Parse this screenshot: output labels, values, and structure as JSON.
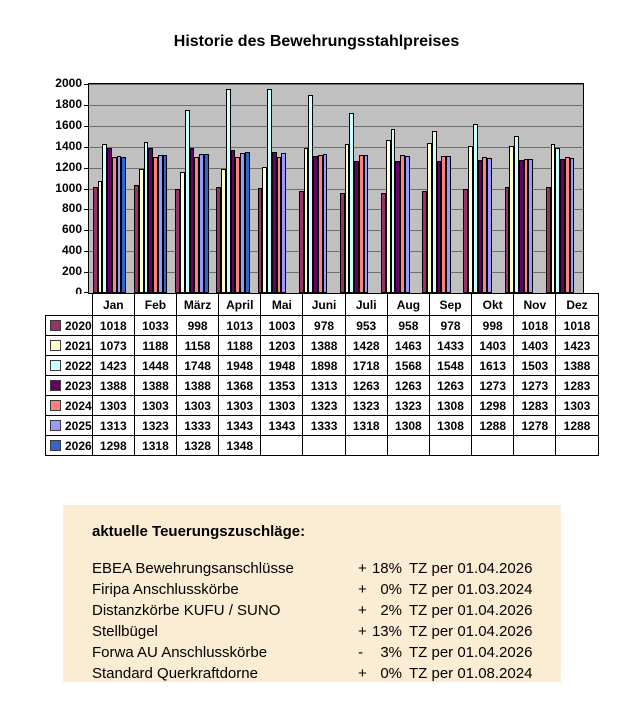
{
  "title": "Historie des Bewehrungsstahlpreises",
  "chart_data": {
    "type": "bar",
    "title": "Historie des Bewehrungsstahlpreises",
    "categories": [
      "Jan",
      "Feb",
      "März",
      "April",
      "Mai",
      "Juni",
      "Juli",
      "Aug",
      "Sep",
      "Okt",
      "Nov",
      "Dez"
    ],
    "series": [
      {
        "name": "2020",
        "color": "#993366",
        "values": [
          1018,
          1033,
          998,
          1013,
          1003,
          978,
          953,
          958,
          978,
          998,
          1018,
          1018
        ]
      },
      {
        "name": "2021",
        "color": "#FFFFCC",
        "values": [
          1073,
          1188,
          1158,
          1188,
          1203,
          1388,
          1428,
          1463,
          1433,
          1403,
          1403,
          1423
        ]
      },
      {
        "name": "2022",
        "color": "#CCFFFF",
        "values": [
          1423,
          1448,
          1748,
          1948,
          1948,
          1898,
          1718,
          1568,
          1548,
          1613,
          1503,
          1388
        ]
      },
      {
        "name": "2023",
        "color": "#660066",
        "values": [
          1388,
          1388,
          1388,
          1368,
          1353,
          1313,
          1263,
          1263,
          1263,
          1273,
          1273,
          1283
        ]
      },
      {
        "name": "2024",
        "color": "#FF8080",
        "values": [
          1303,
          1303,
          1303,
          1303,
          1303,
          1323,
          1323,
          1323,
          1308,
          1298,
          1283,
          1303
        ]
      },
      {
        "name": "2025",
        "color": "#9999FF",
        "values": [
          1313,
          1323,
          1333,
          1343,
          1343,
          1333,
          1318,
          1308,
          1308,
          1288,
          1278,
          1288
        ]
      },
      {
        "name": "2026",
        "color": "#3366CC",
        "values": [
          1298,
          1318,
          1328,
          1348,
          null,
          null,
          null,
          null,
          null,
          null,
          null,
          null
        ]
      }
    ],
    "xlabel": "",
    "ylabel": "",
    "ylim": [
      0,
      2000
    ],
    "ytick_step": 200,
    "grid": true,
    "plot_background": "#C0C0C0",
    "legend_position": "table-left"
  },
  "surcharges": {
    "title": "aktuelle Teuerungszuschläge:",
    "background": "#FBECD4",
    "items": [
      {
        "label": "EBEA Bewehrungsanschlüsse",
        "sign": "+",
        "percent": "18%",
        "rest": "TZ per 01.04.2026"
      },
      {
        "label": "Firipa Anschlusskörbe",
        "sign": "+",
        "percent": "0%",
        "rest": "TZ per 01.03.2024"
      },
      {
        "label": "Distanzkörbe KUFU / SUNO",
        "sign": "+",
        "percent": "2%",
        "rest": "TZ per 01.04.2026"
      },
      {
        "label": "Stellbügel",
        "sign": "+",
        "percent": "13%",
        "rest": "TZ per 01.04.2026"
      },
      {
        "label": "Forwa AU Anschlusskörbe",
        "sign": "-",
        "percent": "3%",
        "rest": "TZ per 01.04.2026"
      },
      {
        "label": "Standard Querkraftdorne",
        "sign": "+",
        "percent": "0%",
        "rest": "TZ per 01.08.2024"
      }
    ]
  }
}
